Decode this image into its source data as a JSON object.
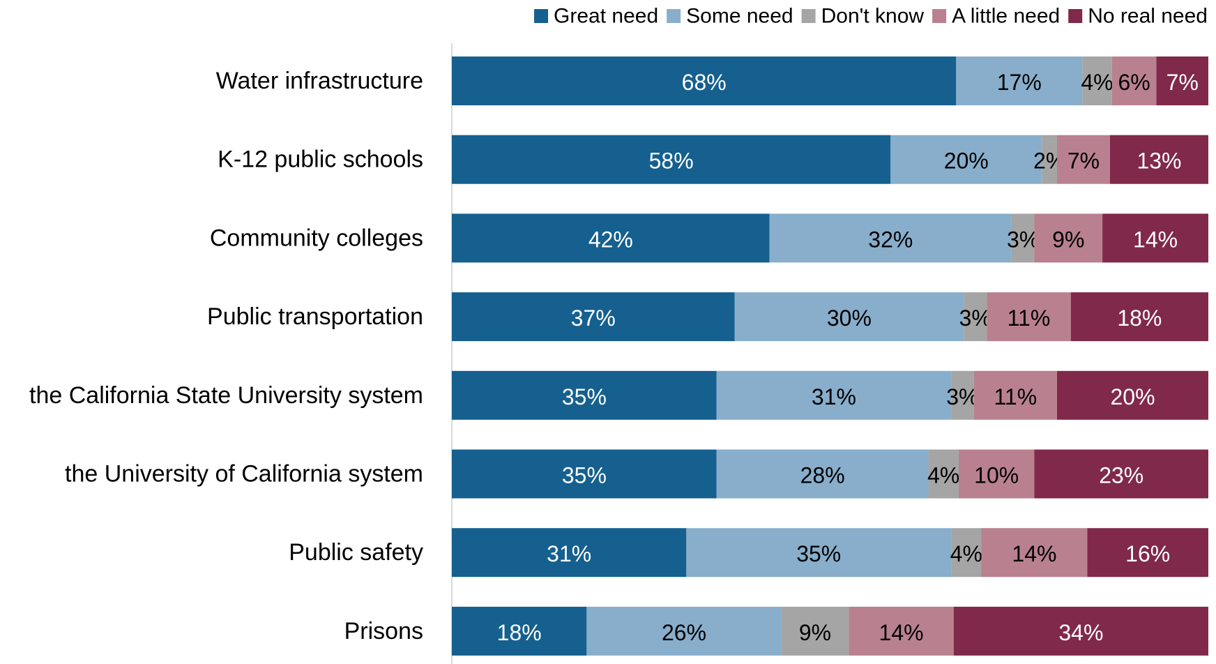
{
  "chart_data": {
    "type": "bar",
    "orientation": "horizontal",
    "stacked": true,
    "categories": [
      "Water infrastructure",
      "K-12 public schools",
      "Community colleges",
      "Public transportation",
      "the California State University system",
      "the University of California system",
      "Public safety",
      "Prisons"
    ],
    "series": [
      {
        "name": "Great need",
        "color": "#15608F",
        "values": [
          68,
          58,
          42,
          37,
          35,
          35,
          31,
          18
        ]
      },
      {
        "name": "Some need",
        "color": "#88AECB",
        "values": [
          17,
          20,
          32,
          30,
          31,
          28,
          35,
          26
        ]
      },
      {
        "name": "Don't know",
        "color": "#A5A5A5",
        "values": [
          4,
          2,
          3,
          3,
          3,
          4,
          4,
          9
        ]
      },
      {
        "name": "A little need",
        "color": "#B9818F",
        "values": [
          6,
          7,
          9,
          11,
          11,
          10,
          14,
          14
        ]
      },
      {
        "name": "No real need",
        "color": "#80294A",
        "values": [
          7,
          13,
          14,
          18,
          20,
          23,
          16,
          34
        ]
      }
    ],
    "value_suffix": "%",
    "legend_position": "top",
    "grid": false,
    "title": "",
    "xlabel": "",
    "ylabel": ""
  }
}
